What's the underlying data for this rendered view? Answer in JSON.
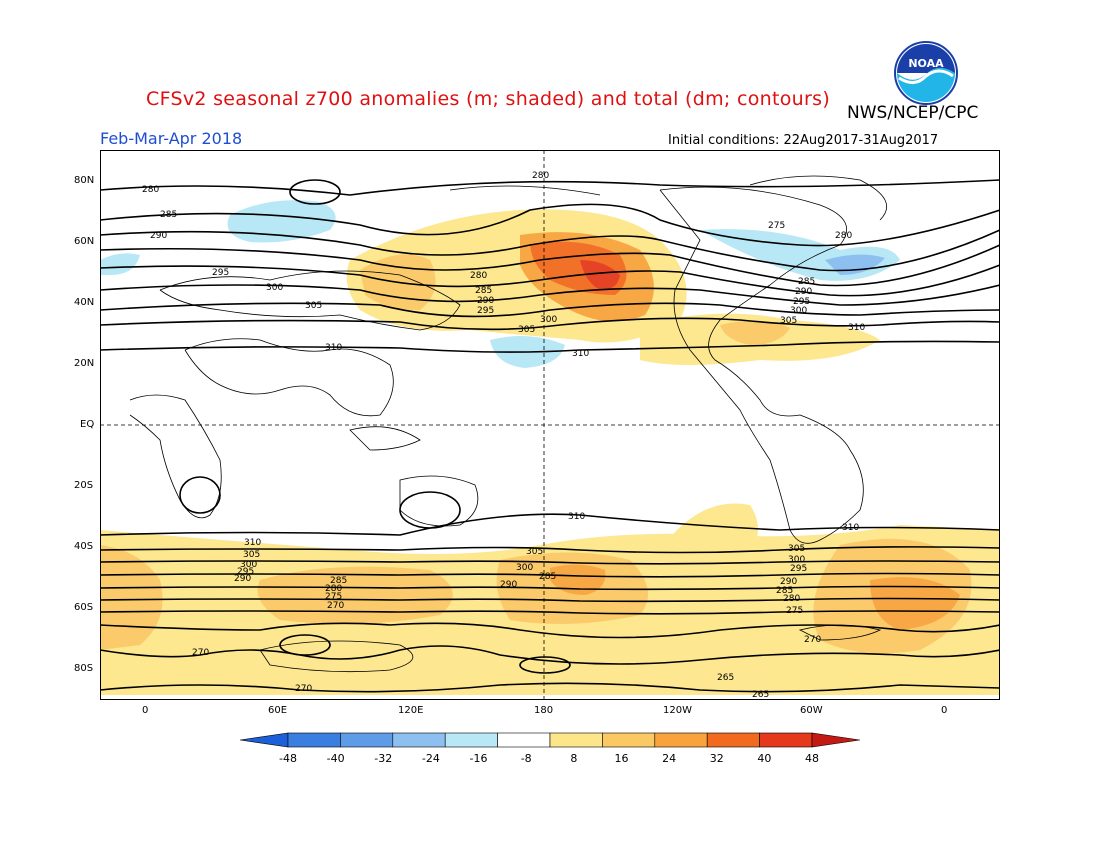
{
  "header": {
    "title": "CFSv2 seasonal z700 anomalies (m; shaded) and total (dm; contours)",
    "agency": "NWS/NCEP/CPC",
    "period": "Feb-Mar-Apr 2018",
    "initial_conditions": "Initial conditions: 22Aug2017-31Aug2017",
    "logo_text": "NOAA"
  },
  "axes": {
    "lat_labels": [
      "80N",
      "60N",
      "40N",
      "20N",
      "EQ",
      "20S",
      "40S",
      "60S",
      "80S"
    ],
    "lon_labels": [
      "0",
      "60E",
      "120E",
      "180",
      "120W",
      "60W",
      "0"
    ]
  },
  "contour_labels": [
    "280",
    "285",
    "290",
    "295",
    "300",
    "305",
    "310",
    "275",
    "265",
    "270"
  ],
  "colorbar": {
    "ticks": [
      "-48",
      "-40",
      "-32",
      "-24",
      "-16",
      "-8",
      "8",
      "16",
      "24",
      "32",
      "40",
      "48"
    ],
    "colors": [
      "#1c5fd8",
      "#3a7fe0",
      "#5e9ce8",
      "#8dc0f0",
      "#b8e8f6",
      "#ffffff",
      "#fde68a",
      "#fbc964",
      "#f8a33c",
      "#f26a1e",
      "#e4391b",
      "#c41a14"
    ]
  }
}
